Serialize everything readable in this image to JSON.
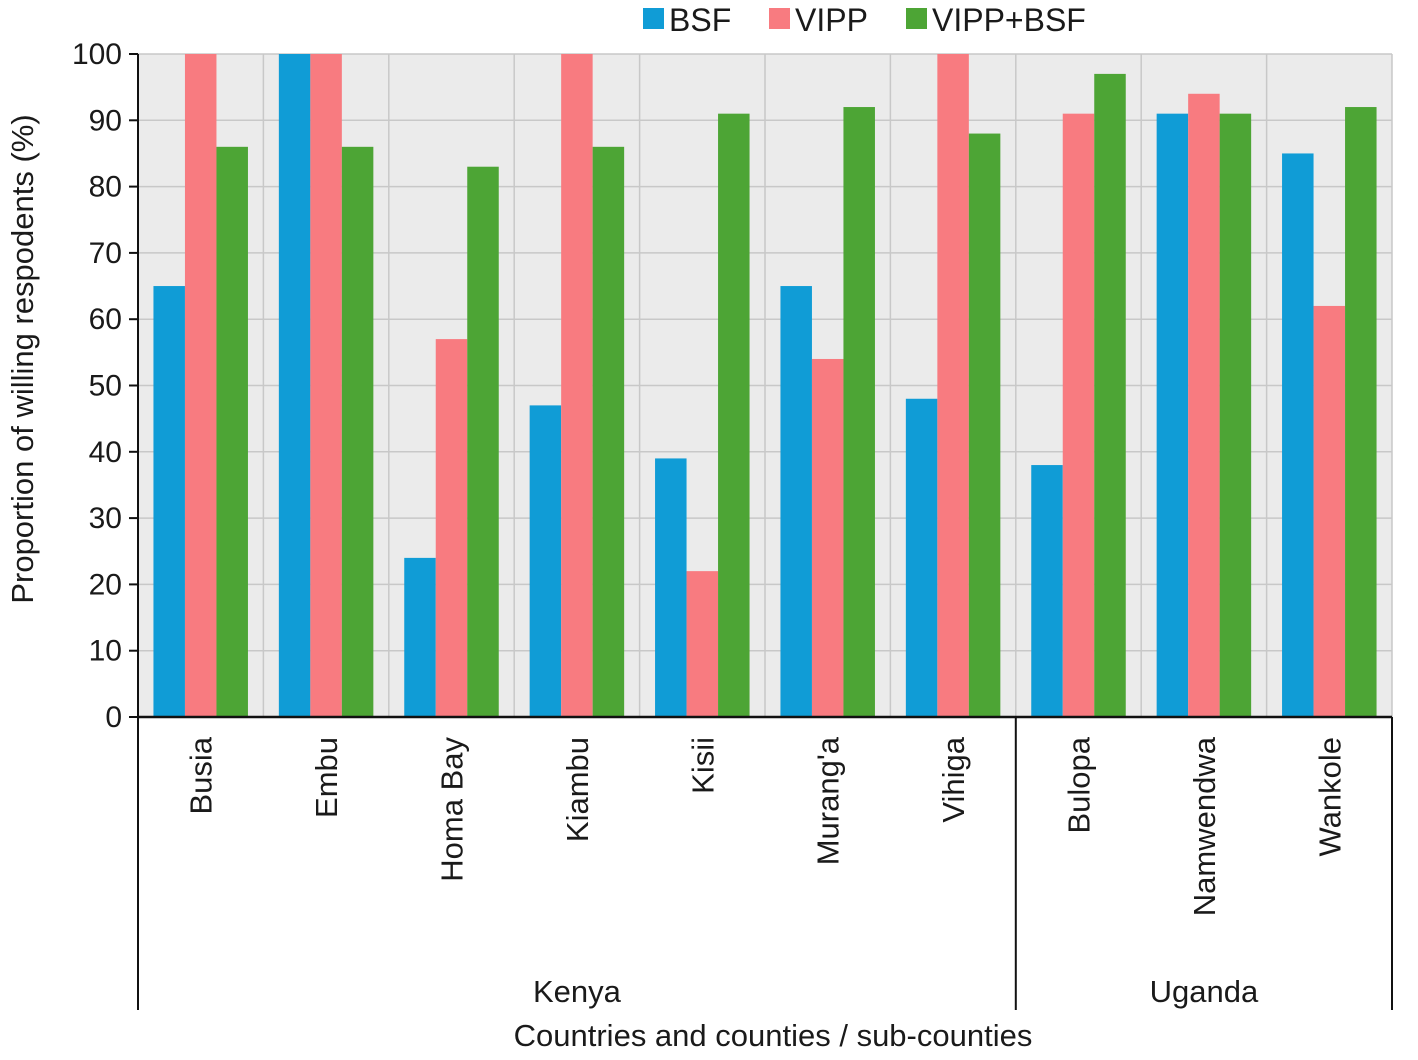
{
  "chart_data": {
    "type": "bar",
    "title": "",
    "xlabel": "Countries and counties / sub-counties",
    "ylabel": "Proportion of willing respodents (%)",
    "ylim": [
      0,
      100
    ],
    "yticks": [
      0,
      10,
      20,
      30,
      40,
      50,
      60,
      70,
      80,
      90,
      100
    ],
    "grid": true,
    "legend_position": "top",
    "categories": [
      "Busia",
      "Embu",
      "Homa Bay",
      "Kiambu",
      "Kisii",
      "Murang'a",
      "Vihiga",
      "Bulopa",
      "Namwendwa",
      "Wankole"
    ],
    "groups": [
      {
        "name": "Kenya",
        "categories": [
          "Busia",
          "Embu",
          "Homa Bay",
          "Kiambu",
          "Kisii",
          "Murang'a",
          "Vihiga"
        ]
      },
      {
        "name": "Uganda",
        "categories": [
          "Bulopa",
          "Namwendwa",
          "Wankole"
        ]
      }
    ],
    "series": [
      {
        "name": "BSF",
        "color": "#109CD6",
        "values": [
          65,
          100,
          24,
          47,
          39,
          65,
          48,
          38,
          91,
          85
        ]
      },
      {
        "name": "VIPP",
        "color": "#F87B80",
        "values": [
          100,
          100,
          57,
          100,
          22,
          54,
          100,
          91,
          94,
          62
        ]
      },
      {
        "name": "VIPP+BSF",
        "color": "#4DA535",
        "values": [
          86,
          86,
          83,
          86,
          91,
          92,
          88,
          97,
          91,
          92
        ]
      }
    ]
  }
}
